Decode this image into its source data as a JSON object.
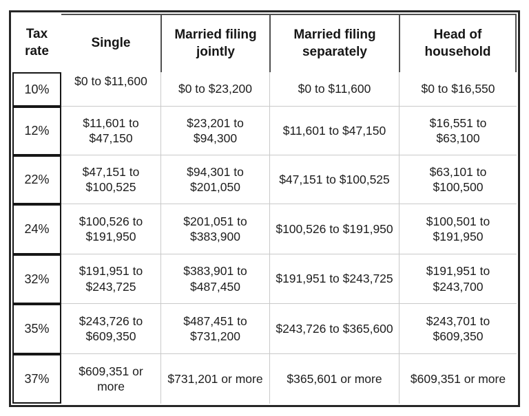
{
  "chart_data": {
    "type": "table",
    "columns": [
      "Tax\nrate",
      "Single",
      "Married filing\njointly",
      "Married filing\nseparately",
      "Head of\nhousehold"
    ],
    "rows": [
      {
        "rate": "10%",
        "single": "$0 to $11,600",
        "mfj": "$0 to $23,200",
        "mfs": "$0 to $11,600",
        "hoh": "$0 to $16,550"
      },
      {
        "rate": "12%",
        "single": "$11,601 to\n$47,150",
        "mfj": "$23,201 to\n$94,300",
        "mfs": "$11,601 to $47,150",
        "hoh": "$16,551 to\n$63,100"
      },
      {
        "rate": "22%",
        "single": "$47,151 to\n$100,525",
        "mfj": "$94,301 to\n$201,050",
        "mfs": "$47,151 to $100,525",
        "hoh": "$63,101 to\n$100,500"
      },
      {
        "rate": "24%",
        "single": "$100,526 to\n$191,950",
        "mfj": "$201,051 to\n$383,900",
        "mfs": "$100,526 to $191,950",
        "hoh": "$100,501 to\n$191,950"
      },
      {
        "rate": "32%",
        "single": "$191,951 to\n$243,725",
        "mfj": "$383,901 to\n$487,450",
        "mfs": "$191,951 to $243,725",
        "hoh": "$191,951 to\n$243,700"
      },
      {
        "rate": "35%",
        "single": "$243,726 to\n$609,350",
        "mfj": "$487,451 to\n$731,200",
        "mfs": "$243,726 to $365,600",
        "hoh": "$243,701 to\n$609,350"
      },
      {
        "rate": "37%",
        "single": "$609,351 or\nmore",
        "mfj": "$731,201 or more",
        "mfs": "$365,601 or more",
        "hoh": "$609,351 or more"
      }
    ],
    "layout_hints": {
      "grid": "on",
      "legend": "none"
    },
    "colors": {
      "outer_border": "#262626",
      "rate_box_border": "#161616",
      "header_rule": "#4f4f4f",
      "grid_line": "#c9c9c9",
      "text": "#1d1d1d",
      "background": "#ffffff"
    }
  }
}
